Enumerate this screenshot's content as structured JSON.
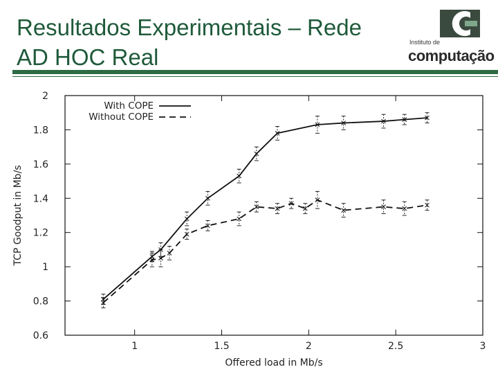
{
  "slide": {
    "title_line1": "Resultados Experimentais – Rede",
    "title_line2": "AD HOC Real"
  },
  "logo": {
    "small_text": "Instituto de",
    "big_text": "computação"
  },
  "chart_data": {
    "type": "line",
    "xlabel": "Offered load in Mb/s",
    "ylabel": "TCP Goodput in Mb/s",
    "xlim": [
      0.6,
      3
    ],
    "ylim": [
      0.6,
      2
    ],
    "xticks": [
      1,
      1.5,
      2,
      2.5,
      3
    ],
    "xtick_labels": [
      "1",
      "1.5",
      "2",
      "2.5",
      "3"
    ],
    "yticks": [
      0.6,
      0.8,
      1,
      1.2,
      1.4,
      1.6,
      1.8,
      2
    ],
    "ytick_labels": [
      "0.6",
      "0.8",
      "1",
      "1.2",
      "1.4",
      "1.6",
      "1.8",
      "2"
    ],
    "grid": false,
    "legend_position": "top-left",
    "series": [
      {
        "name": "With COPE",
        "style": "solid",
        "x": [
          0.82,
          1.1,
          1.15,
          1.3,
          1.42,
          1.6,
          1.7,
          1.82,
          2.05,
          2.2,
          2.43,
          2.55,
          2.68
        ],
        "y": [
          0.81,
          1.06,
          1.1,
          1.28,
          1.4,
          1.53,
          1.66,
          1.78,
          1.83,
          1.84,
          1.85,
          1.86,
          1.87
        ],
        "err": [
          0.03,
          0.03,
          0.04,
          0.04,
          0.04,
          0.04,
          0.04,
          0.04,
          0.05,
          0.04,
          0.04,
          0.03,
          0.03
        ]
      },
      {
        "name": "Without COPE",
        "style": "dashed",
        "x": [
          0.82,
          1.1,
          1.15,
          1.2,
          1.3,
          1.42,
          1.6,
          1.7,
          1.82,
          1.9,
          1.98,
          2.05,
          2.2,
          2.43,
          2.55,
          2.68
        ],
        "y": [
          0.79,
          1.04,
          1.05,
          1.08,
          1.19,
          1.24,
          1.28,
          1.35,
          1.34,
          1.37,
          1.34,
          1.39,
          1.33,
          1.35,
          1.34,
          1.36
        ],
        "err": [
          0.03,
          0.04,
          0.05,
          0.04,
          0.03,
          0.03,
          0.04,
          0.03,
          0.03,
          0.03,
          0.03,
          0.05,
          0.04,
          0.04,
          0.04,
          0.03
        ]
      }
    ]
  }
}
